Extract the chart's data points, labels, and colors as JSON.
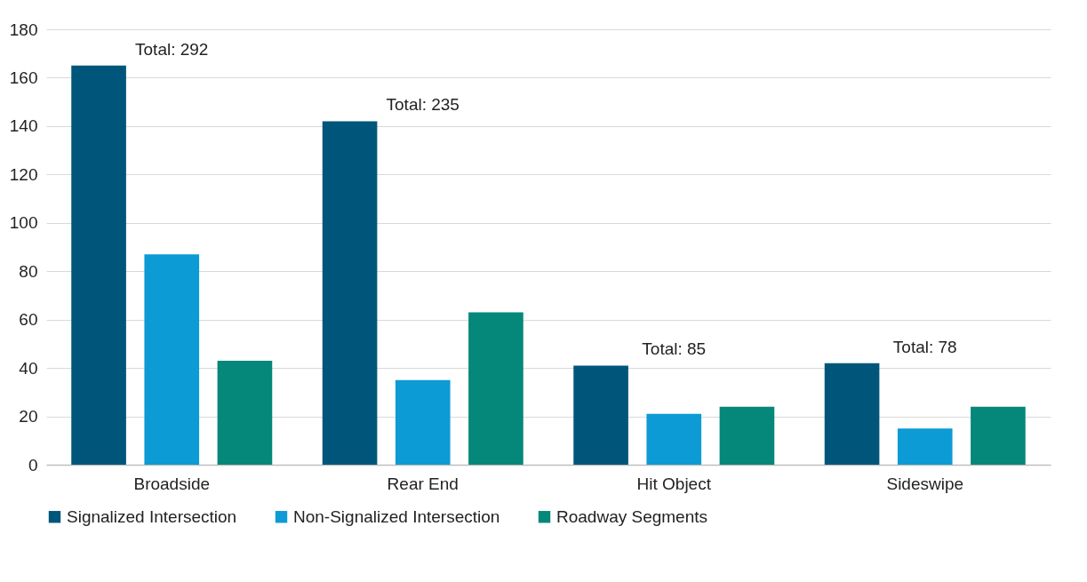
{
  "chart_data": {
    "type": "bar",
    "categories": [
      "Broadside",
      "Rear End",
      "Hit Object",
      "Sideswipe"
    ],
    "series": [
      {
        "name": "Signalized Intersection",
        "color": "#00567a",
        "values": [
          165,
          142,
          41,
          42
        ]
      },
      {
        "name": "Non-Signalized Intersection",
        "color": "#0c9bd4",
        "values": [
          87,
          35,
          21,
          15
        ]
      },
      {
        "name": "Roadway Segments",
        "color": "#05877a",
        "values": [
          43,
          63,
          24,
          24
        ]
      }
    ],
    "ylim": [
      0,
      180
    ],
    "yticks": [
      0,
      20,
      40,
      60,
      80,
      100,
      120,
      140,
      160,
      180
    ],
    "grid": "y",
    "legend": "bottom",
    "annotations": [
      "Total: 292",
      "Total: 235",
      "Total: 85",
      "Total: 78"
    ]
  }
}
